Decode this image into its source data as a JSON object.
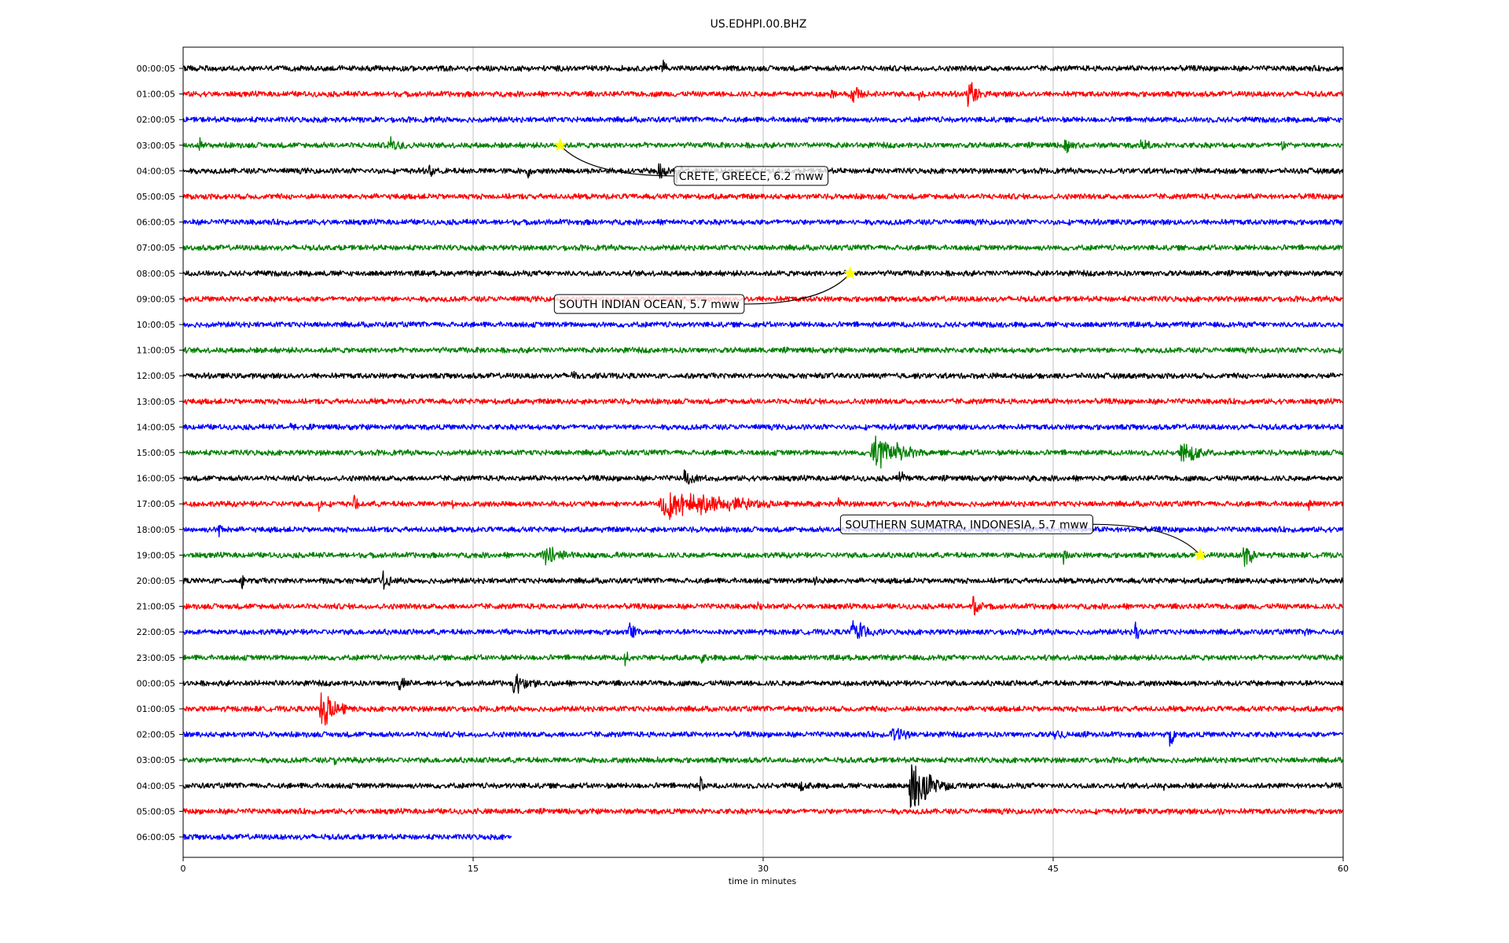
{
  "chart_data": {
    "type": "line",
    "title": "US.EDHPI.00.BHZ",
    "xlabel": "time in minutes",
    "xlim": [
      0,
      60
    ],
    "x_ticks": [
      "0",
      "15",
      "30",
      "45",
      "60"
    ],
    "grid": "vertical",
    "row_labels": [
      "00:00:05",
      "01:00:05",
      "02:00:05",
      "03:00:05",
      "04:00:05",
      "05:00:05",
      "06:00:05",
      "07:00:05",
      "08:00:05",
      "09:00:05",
      "10:00:05",
      "11:00:05",
      "12:00:05",
      "13:00:05",
      "14:00:05",
      "15:00:05",
      "16:00:05",
      "17:00:05",
      "18:00:05",
      "19:00:05",
      "20:00:05",
      "21:00:05",
      "22:00:05",
      "23:00:05",
      "00:00:05",
      "01:00:05",
      "02:00:05",
      "03:00:05",
      "04:00:05",
      "05:00:05",
      "06:00:05"
    ],
    "row_colors": [
      "#000000",
      "#ff0000",
      "#0000ff",
      "#008000"
    ],
    "last_row_end_minute": 17,
    "events": [
      {
        "row": 2,
        "start": 8.5,
        "dur": 1.5,
        "amp": 0.2
      },
      {
        "row": 6,
        "start": 25.0,
        "dur": 1.0,
        "amp": 0.2
      },
      {
        "row": 12,
        "start": 20.0,
        "dur": 2.0,
        "amp": 0.3
      },
      {
        "row": 24,
        "start": 3.0,
        "dur": 2.0,
        "amp": 0.2
      },
      {
        "row": 25,
        "start": 31.0,
        "dur": 1.0,
        "amp": 0.2
      },
      {
        "row": 26,
        "start": 47.0,
        "dur": 1.0,
        "amp": 0.2
      },
      {
        "row": 27,
        "start": 30.0,
        "dur": 1.5,
        "amp": 0.2
      },
      {
        "row": 28,
        "start": 56.0,
        "dur": 1.0,
        "amp": 0.2
      },
      {
        "row": 29,
        "start": 15.0,
        "dur": 1.0,
        "amp": 0.2
      },
      {
        "row": 0,
        "start": 24.7,
        "dur": 0.5,
        "amp": 0.9
      },
      {
        "row": 1,
        "start": 33.3,
        "dur": 1.0,
        "amp": 0.5
      },
      {
        "row": 1,
        "start": 34.5,
        "dur": 1.5,
        "amp": 0.6
      },
      {
        "row": 1,
        "start": 38.0,
        "dur": 1.0,
        "amp": 0.4
      },
      {
        "row": 1,
        "start": 40.5,
        "dur": 1.5,
        "amp": 0.9
      },
      {
        "row": 3,
        "start": 0.8,
        "dur": 0.4,
        "amp": 0.6
      },
      {
        "row": 3,
        "start": 10.5,
        "dur": 2.5,
        "amp": 0.5
      },
      {
        "row": 3,
        "start": 45.5,
        "dur": 1.5,
        "amp": 0.5
      },
      {
        "row": 3,
        "start": 49.5,
        "dur": 1.0,
        "amp": 0.6
      },
      {
        "row": 3,
        "start": 56.8,
        "dur": 0.6,
        "amp": 0.5
      },
      {
        "row": 4,
        "start": 12.7,
        "dur": 0.5,
        "amp": 0.7
      },
      {
        "row": 4,
        "start": 13.5,
        "dur": 0.3,
        "amp": 0.4
      },
      {
        "row": 4,
        "start": 17.8,
        "dur": 0.6,
        "amp": 0.6
      },
      {
        "row": 4,
        "start": 24.5,
        "dur": 0.8,
        "amp": 0.9
      },
      {
        "row": 4,
        "start": 25.5,
        "dur": 0.4,
        "amp": 1.0
      },
      {
        "row": 4,
        "start": 48.0,
        "dur": 0.5,
        "amp": 0.3
      },
      {
        "row": 14,
        "start": 5.5,
        "dur": 1.0,
        "amp": 0.4
      },
      {
        "row": 15,
        "start": 35.5,
        "dur": 3.5,
        "amp": 1.2
      },
      {
        "row": 15,
        "start": 51.5,
        "dur": 2.5,
        "amp": 0.7
      },
      {
        "row": 16,
        "start": 25.8,
        "dur": 1.5,
        "amp": 0.6
      },
      {
        "row": 16,
        "start": 37.0,
        "dur": 1.0,
        "amp": 0.5
      },
      {
        "row": 16,
        "start": 43.8,
        "dur": 0.5,
        "amp": 0.3
      },
      {
        "row": 17,
        "start": 7.0,
        "dur": 0.4,
        "amp": 0.5
      },
      {
        "row": 17,
        "start": 8.8,
        "dur": 0.5,
        "amp": 0.6
      },
      {
        "row": 17,
        "start": 13.9,
        "dur": 0.3,
        "amp": 0.7
      },
      {
        "row": 17,
        "start": 24.5,
        "dur": 8.0,
        "amp": 1.0
      },
      {
        "row": 17,
        "start": 33.8,
        "dur": 0.6,
        "amp": 0.6
      },
      {
        "row": 17,
        "start": 58.2,
        "dur": 0.4,
        "amp": 0.4
      },
      {
        "row": 18,
        "start": 1.8,
        "dur": 0.6,
        "amp": 0.6
      },
      {
        "row": 18,
        "start": 41.5,
        "dur": 2.0,
        "amp": 0.3
      },
      {
        "row": 19,
        "start": 18.5,
        "dur": 3.0,
        "amp": 0.7
      },
      {
        "row": 19,
        "start": 22.3,
        "dur": 0.8,
        "amp": 0.4
      },
      {
        "row": 19,
        "start": 45.5,
        "dur": 0.5,
        "amp": 0.6
      },
      {
        "row": 19,
        "start": 54.8,
        "dur": 1.0,
        "amp": 1.0
      },
      {
        "row": 20,
        "start": 3.0,
        "dur": 0.3,
        "amp": 0.7
      },
      {
        "row": 20,
        "start": 7.0,
        "dur": 0.5,
        "amp": 0.4
      },
      {
        "row": 20,
        "start": 10.3,
        "dur": 0.8,
        "amp": 0.7
      },
      {
        "row": 20,
        "start": 32.5,
        "dur": 1.0,
        "amp": 0.6
      },
      {
        "row": 21,
        "start": 29.7,
        "dur": 1.0,
        "amp": 0.4
      },
      {
        "row": 21,
        "start": 40.8,
        "dur": 1.0,
        "amp": 0.8
      },
      {
        "row": 22,
        "start": 16.5,
        "dur": 1.0,
        "amp": 0.6
      },
      {
        "row": 22,
        "start": 23.0,
        "dur": 1.0,
        "amp": 0.7
      },
      {
        "row": 22,
        "start": 34.5,
        "dur": 2.0,
        "amp": 0.9
      },
      {
        "row": 22,
        "start": 49.2,
        "dur": 0.6,
        "amp": 0.8
      },
      {
        "row": 22,
        "start": 58.0,
        "dur": 0.5,
        "amp": 0.4
      },
      {
        "row": 23,
        "start": 22.8,
        "dur": 0.8,
        "amp": 0.5
      },
      {
        "row": 23,
        "start": 26.8,
        "dur": 0.4,
        "amp": 0.4
      },
      {
        "row": 24,
        "start": 11.0,
        "dur": 0.8,
        "amp": 0.8
      },
      {
        "row": 24,
        "start": 17.0,
        "dur": 2.5,
        "amp": 0.7
      },
      {
        "row": 25,
        "start": 7.0,
        "dur": 2.0,
        "amp": 1.3
      },
      {
        "row": 26,
        "start": 36.5,
        "dur": 2.0,
        "amp": 0.6
      },
      {
        "row": 26,
        "start": 45.0,
        "dur": 1.5,
        "amp": 0.5
      },
      {
        "row": 26,
        "start": 51.0,
        "dur": 0.5,
        "amp": 0.9
      },
      {
        "row": 27,
        "start": 7.8,
        "dur": 0.5,
        "amp": 0.5
      },
      {
        "row": 27,
        "start": 24.5,
        "dur": 0.5,
        "amp": 0.3
      },
      {
        "row": 28,
        "start": 26.7,
        "dur": 0.4,
        "amp": 0.7
      },
      {
        "row": 28,
        "start": 31.8,
        "dur": 1.0,
        "amp": 0.4
      },
      {
        "row": 28,
        "start": 37.5,
        "dur": 2.5,
        "amp": 1.7
      },
      {
        "row": 28,
        "start": 50.7,
        "dur": 0.3,
        "amp": 0.3
      },
      {
        "row": 29,
        "start": 53.5,
        "dur": 0.8,
        "amp": 0.4
      }
    ],
    "annotations": [
      {
        "text": "CRETE, GREECE, 6.2 mww",
        "row": 3,
        "minute": 19.5,
        "text_row": 4.2,
        "text_minute": 25.4
      },
      {
        "text": "SOUTH INDIAN OCEAN, 5.7 mww",
        "row": 8,
        "minute": 34.5,
        "text_row": 9.2,
        "text_minute": 19.2
      },
      {
        "text": "SOUTHERN SUMATRA, INDONESIA, 5.7 mww",
        "row": 19,
        "minute": 52.6,
        "text_row": 17.8,
        "text_minute": 34.0
      }
    ]
  }
}
